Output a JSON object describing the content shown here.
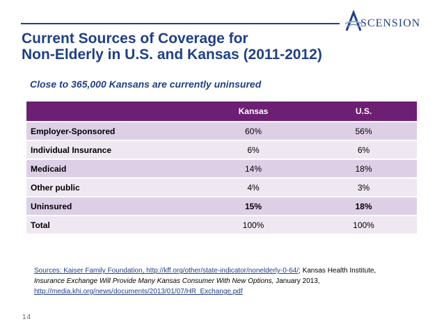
{
  "logo": {
    "text": "SCENSION",
    "mark": "A"
  },
  "title": {
    "line1": "Current Sources of Coverage for",
    "line2": "Non-Elderly in U.S. and Kansas (2011-2012)"
  },
  "subtitle": "Close to 365,000 Kansans are  currently uninsured",
  "table": {
    "headers": [
      "",
      "Kansas",
      "U.S."
    ],
    "rows": [
      {
        "label": "Employer-Sponsored",
        "kansas": "60%",
        "us": "56%"
      },
      {
        "label": "Individual Insurance",
        "kansas": "6%",
        "us": "6%"
      },
      {
        "label": "Medicaid",
        "kansas": "14%",
        "us": "18%"
      },
      {
        "label": "Other public",
        "kansas": "4%",
        "us": "3%"
      },
      {
        "label": "Uninsured",
        "kansas": "15%",
        "us": "18%"
      },
      {
        "label": "Total",
        "kansas": "100%",
        "us": "100%"
      }
    ]
  },
  "sources": {
    "link1": "Sources: Kaiser Family Foundation, http://kff.org/other/state-indicator/nonelderly-0-64/",
    "text1": "; Kansas Health Institute,",
    "italic": "Insurance Exchange Will Provide Many Kansas Consumer With New Options,",
    "text2": " January 2013,",
    "link2": "http://media.khi.org/news/documents/2013/01/07/HR_Exchange.pdf"
  },
  "page_number": "14",
  "colors": {
    "title": "#1f3f86",
    "header": "#6c1f73",
    "row_dark": "#ddd0e6",
    "row_light": "#efe7f2"
  }
}
